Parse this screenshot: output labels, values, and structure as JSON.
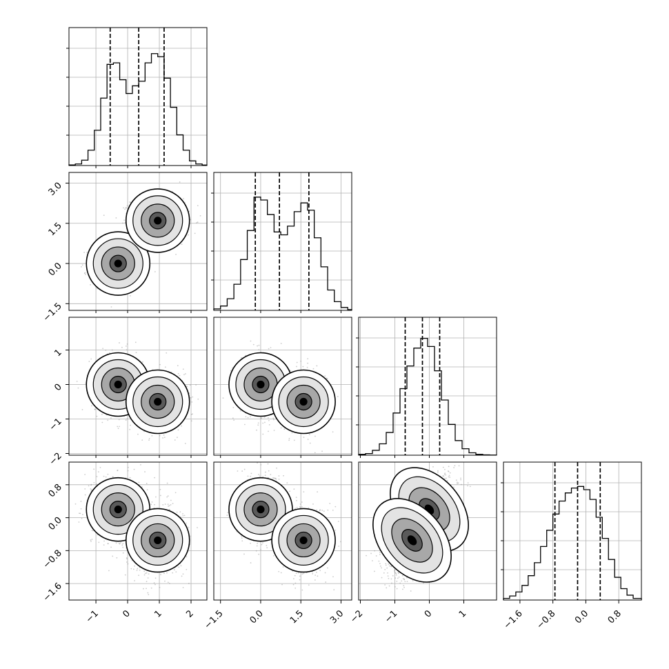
{
  "chart_data": {
    "type": "corner",
    "dimensions": 4,
    "grid": true,
    "params": [
      {
        "index": 0,
        "range": [
          -1.85,
          2.5
        ],
        "ticks": [
          -1,
          0,
          1,
          2
        ],
        "tick_labels": [
          "−1",
          "0",
          "1",
          "2"
        ],
        "quantiles": [
          -0.55,
          0.35,
          1.15
        ],
        "histogram": {
          "bins": [
            -1.85,
            -1.65,
            -1.45,
            -1.25,
            -1.05,
            -0.85,
            -0.65,
            -0.45,
            -0.25,
            -0.05,
            0.15,
            0.35,
            0.55,
            0.75,
            0.95,
            1.15,
            1.35,
            1.55,
            1.75,
            1.95,
            2.15,
            2.35,
            2.5
          ],
          "counts": [
            0.004,
            0.01,
            0.035,
            0.1,
            0.23,
            0.44,
            0.66,
            0.67,
            0.56,
            0.47,
            0.52,
            0.55,
            0.67,
            0.73,
            0.71,
            0.57,
            0.38,
            0.2,
            0.1,
            0.03,
            0.01,
            0.003
          ],
          "ymax": 0.9
        }
      },
      {
        "index": 1,
        "range": [
          -1.75,
          3.4
        ],
        "ticks": [
          -1.5,
          0.0,
          1.5,
          3.0
        ],
        "tick_labels": [
          "−1.5",
          "0.0",
          "1.5",
          "3.0"
        ],
        "quantiles": [
          -0.2,
          0.7,
          1.8
        ],
        "histogram": {
          "bins": [
            -1.75,
            -1.5,
            -1.25,
            -1.0,
            -0.75,
            -0.5,
            -0.25,
            0.0,
            0.25,
            0.5,
            0.75,
            1.0,
            1.25,
            1.5,
            1.75,
            2.0,
            2.25,
            2.5,
            2.75,
            3.0,
            3.25,
            3.4
          ],
          "counts": [
            0.01,
            0.03,
            0.08,
            0.18,
            0.35,
            0.55,
            0.78,
            0.76,
            0.66,
            0.54,
            0.52,
            0.58,
            0.68,
            0.74,
            0.69,
            0.5,
            0.3,
            0.14,
            0.06,
            0.02,
            0.005
          ],
          "ymax": 0.95
        }
      },
      {
        "index": 2,
        "range": [
          -2.05,
          1.95
        ],
        "ticks": [
          -2,
          -1,
          0,
          1
        ],
        "tick_labels": [
          "−2",
          "−1",
          "0",
          "1"
        ],
        "quantiles": [
          -0.7,
          -0.2,
          0.3
        ],
        "histogram": {
          "bins": [
            -2.05,
            -1.85,
            -1.65,
            -1.45,
            -1.25,
            -1.05,
            -0.85,
            -0.65,
            -0.45,
            -0.25,
            -0.05,
            0.15,
            0.35,
            0.55,
            0.75,
            0.95,
            1.15,
            1.35,
            1.55,
            1.75,
            1.95
          ],
          "counts": [
            0.005,
            0.01,
            0.03,
            0.07,
            0.14,
            0.26,
            0.41,
            0.55,
            0.66,
            0.72,
            0.67,
            0.52,
            0.34,
            0.19,
            0.09,
            0.04,
            0.015,
            0.005,
            0.002,
            0.001
          ],
          "ymax": 0.85
        }
      },
      {
        "index": 3,
        "range": [
          -2.0,
          1.35
        ],
        "ticks": [
          -1.6,
          -0.8,
          0.0,
          0.8
        ],
        "tick_labels": [
          "−1.6",
          "−0.8",
          "0.0",
          "0.8"
        ],
        "quantiles": [
          -0.75,
          -0.2,
          0.35
        ],
        "histogram": {
          "bins": [
            -2.0,
            -1.85,
            -1.7,
            -1.55,
            -1.4,
            -1.25,
            -1.1,
            -0.95,
            -0.8,
            -0.65,
            -0.5,
            -0.35,
            -0.2,
            -0.05,
            0.1,
            0.25,
            0.4,
            0.55,
            0.7,
            0.85,
            1.0,
            1.15,
            1.35
          ],
          "counts": [
            0.01,
            0.025,
            0.05,
            0.09,
            0.15,
            0.23,
            0.33,
            0.43,
            0.53,
            0.61,
            0.66,
            0.69,
            0.7,
            0.68,
            0.62,
            0.51,
            0.38,
            0.25,
            0.14,
            0.07,
            0.03,
            0.01
          ],
          "ymax": 0.85
        }
      }
    ],
    "modes": [
      {
        "mean": [
          -0.3,
          0.0,
          0.0,
          0.2
        ],
        "weight": 0.5
      },
      {
        "mean": [
          0.95,
          1.6,
          -0.5,
          -0.55
        ],
        "weight": 0.5
      }
    ]
  }
}
